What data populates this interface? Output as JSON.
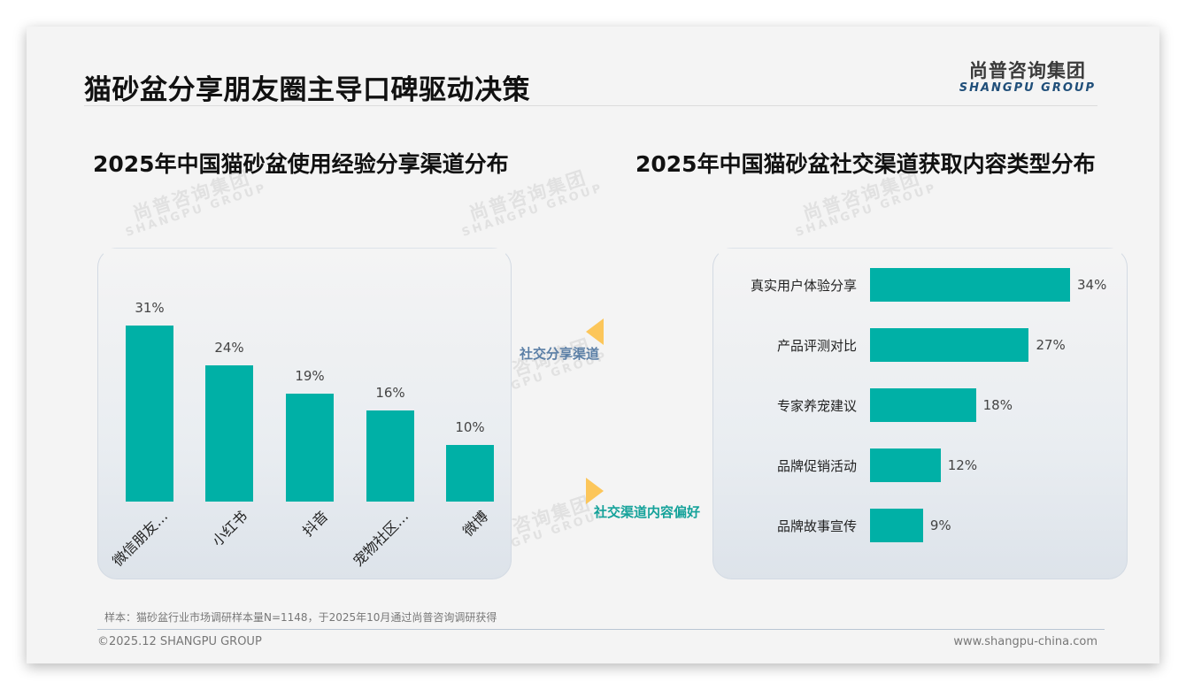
{
  "header": {
    "title": "猫砂盆分享朋友圈主导口碑驱动决策",
    "logo_cn": "尚普咨询集团",
    "logo_en": "SHANGPU GROUP"
  },
  "watermark": {
    "cn": "尚普咨询集团",
    "en": "SHANGPU GROUP"
  },
  "flow": {
    "label_top": "社交分享渠道",
    "label_bottom": "社交渠道内容偏好",
    "arrow_color": "#FCC65A"
  },
  "colors": {
    "bar": "#00B0A6",
    "flow_top_text": "#5B7FA6",
    "flow_bottom_text": "#15A29A"
  },
  "chart_data": [
    {
      "type": "bar",
      "orientation": "vertical",
      "title": "2025年中国猫砂盆使用经验分享渠道分布",
      "categories": [
        "微信朋友…",
        "小红书",
        "抖音",
        "宠物社区…",
        "微博"
      ],
      "values": [
        31,
        24,
        19,
        16,
        10
      ],
      "value_labels": [
        "31%",
        "24%",
        "19%",
        "16%",
        "10%"
      ],
      "unit": "%",
      "xlabel": "",
      "ylabel": "",
      "grid": false,
      "legend": "none",
      "tick_label_rotation": -45
    },
    {
      "type": "bar",
      "orientation": "horizontal",
      "title": "2025年中国猫砂盆社交渠道获取内容类型分布",
      "categories": [
        "真实用户体验分享",
        "产品评测对比",
        "专家养宠建议",
        "品牌促销活动",
        "品牌故事宣传"
      ],
      "values": [
        34,
        27,
        18,
        12,
        9
      ],
      "value_labels": [
        "34%",
        "27%",
        "18%",
        "12%",
        "9%"
      ],
      "unit": "%",
      "xlabel": "",
      "ylabel": "",
      "grid": false,
      "legend": "none"
    }
  ],
  "footer": {
    "note": "样本：猫砂盆行业市场调研样本量N=1148，于2025年10月通过尚普咨询调研获得",
    "copyright": "©2025.12 SHANGPU GROUP",
    "website": "www.shangpu-china.com"
  }
}
